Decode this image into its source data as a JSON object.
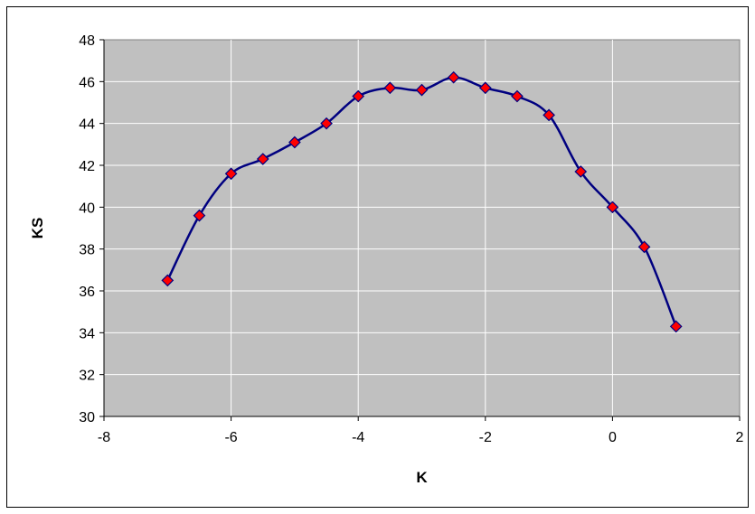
{
  "chart_data": {
    "type": "line",
    "title": "",
    "xlabel": "K",
    "ylabel": "KS",
    "xlim": [
      -8,
      2
    ],
    "ylim": [
      30,
      48
    ],
    "x_ticks": [
      "-8",
      "-6",
      "-4",
      "-2",
      "0",
      "2"
    ],
    "y_ticks": [
      "30",
      "32",
      "34",
      "36",
      "38",
      "40",
      "42",
      "44",
      "46",
      "48"
    ],
    "grid": true,
    "smooth": true,
    "plot_background": "#C0C0C0",
    "line_color": "#000080",
    "marker": "diamond",
    "marker_color": "#FF0000",
    "series": [
      {
        "x": [
          -7,
          -6.5,
          -6,
          -5.5,
          -5,
          -4.5,
          -4,
          -3.5,
          -3,
          -2.5,
          -2,
          -1.5,
          -1,
          -0.5,
          0,
          0.5,
          1
        ],
        "y": [
          36.5,
          39.6,
          41.6,
          42.3,
          43.1,
          44.0,
          45.3,
          45.7,
          45.6,
          46.2,
          45.7,
          45.3,
          44.4,
          41.7,
          40.0,
          38.1,
          34.3
        ]
      }
    ]
  }
}
